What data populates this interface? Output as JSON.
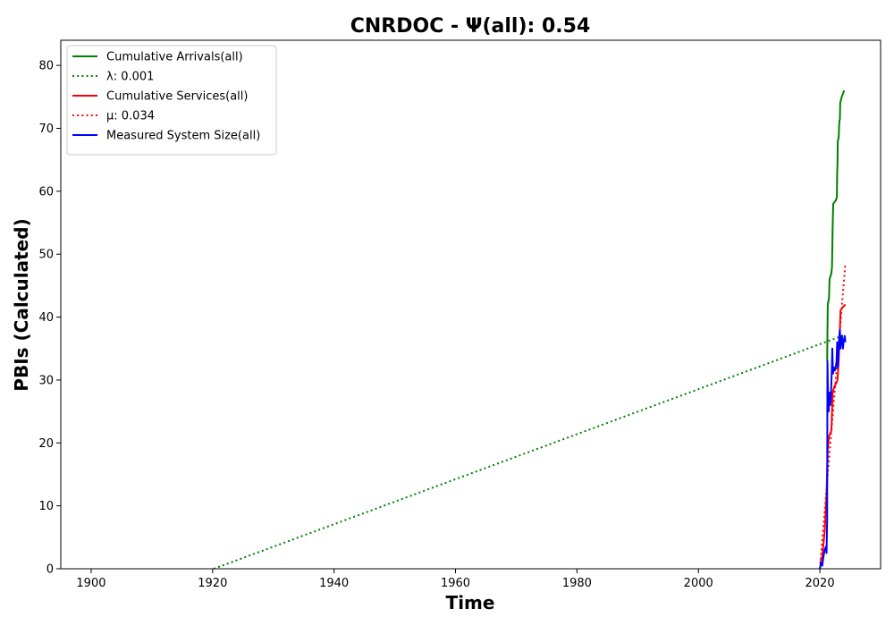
{
  "chart_data": {
    "type": "line",
    "title": "CNRDOC -  Ψ(all): 0.54",
    "xlabel": "Time",
    "ylabel": "PBIs (Calculated)",
    "xlim": [
      1895,
      2030
    ],
    "ylim": [
      0,
      84
    ],
    "xticks": [
      1900,
      1920,
      1940,
      1960,
      1980,
      2000,
      2020
    ],
    "yticks": [
      0,
      10,
      20,
      30,
      40,
      50,
      60,
      70,
      80
    ],
    "grid": false,
    "legend_position": "top-left",
    "series": [
      {
        "name": "Cumulative Arrivals(all)",
        "color": "#008000",
        "style": "solid",
        "points": [
          [
            2021.2,
            33
          ],
          [
            2021.3,
            42
          ],
          [
            2021.5,
            43
          ],
          [
            2021.6,
            46
          ],
          [
            2021.9,
            47
          ],
          [
            2022.0,
            48
          ],
          [
            2022.1,
            54
          ],
          [
            2022.2,
            58
          ],
          [
            2022.6,
            58.5
          ],
          [
            2022.8,
            59
          ],
          [
            2022.85,
            63
          ],
          [
            2022.9,
            64
          ],
          [
            2022.95,
            68
          ],
          [
            2023.1,
            68.5
          ],
          [
            2023.2,
            71
          ],
          [
            2023.3,
            71.5
          ],
          [
            2023.35,
            74
          ],
          [
            2023.6,
            75
          ],
          [
            2024.0,
            76
          ]
        ]
      },
      {
        "name": "λ: 0.001",
        "color": "#008000",
        "style": "dotted",
        "points": [
          [
            1920.2,
            0
          ],
          [
            2024.2,
            37.2
          ]
        ]
      },
      {
        "name": "Cumulative Services(all)",
        "color": "#ff0000",
        "style": "solid",
        "points": [
          [
            2020.1,
            1
          ],
          [
            2020.4,
            2
          ],
          [
            2020.8,
            6
          ],
          [
            2021.1,
            12
          ],
          [
            2021.3,
            19
          ],
          [
            2021.5,
            21
          ],
          [
            2021.7,
            21.5
          ],
          [
            2021.9,
            22
          ],
          [
            2022.1,
            28
          ],
          [
            2022.4,
            29
          ],
          [
            2022.7,
            29.5
          ],
          [
            2022.9,
            30
          ],
          [
            2023.1,
            33
          ],
          [
            2023.3,
            38
          ],
          [
            2023.4,
            41
          ],
          [
            2023.7,
            41.5
          ],
          [
            2024.2,
            42
          ]
        ]
      },
      {
        "name": "μ: 0.034",
        "color": "#ff0000",
        "style": "dotted",
        "points": [
          [
            2020.0,
            0
          ],
          [
            2024.2,
            48.5
          ]
        ]
      },
      {
        "name": "Measured System Size(all)",
        "color": "#0000ff",
        "style": "solid",
        "points": [
          [
            2020.0,
            0
          ],
          [
            2020.2,
            1
          ],
          [
            2020.4,
            0.5
          ],
          [
            2020.6,
            2
          ],
          [
            2020.8,
            3
          ],
          [
            2021.0,
            3.5
          ],
          [
            2021.1,
            2.5
          ],
          [
            2021.2,
            8
          ],
          [
            2021.25,
            33
          ],
          [
            2021.35,
            27
          ],
          [
            2021.45,
            25
          ],
          [
            2021.6,
            28
          ],
          [
            2021.7,
            26
          ],
          [
            2021.8,
            27
          ],
          [
            2021.95,
            31
          ],
          [
            2022.05,
            35
          ],
          [
            2022.15,
            31
          ],
          [
            2022.3,
            32
          ],
          [
            2022.45,
            31.5
          ],
          [
            2022.6,
            32
          ],
          [
            2022.75,
            33
          ],
          [
            2022.85,
            36
          ],
          [
            2022.95,
            32
          ],
          [
            2023.05,
            34
          ],
          [
            2023.2,
            37
          ],
          [
            2023.3,
            38
          ],
          [
            2023.4,
            35
          ],
          [
            2023.5,
            36
          ],
          [
            2023.6,
            37
          ],
          [
            2023.7,
            36.5
          ],
          [
            2023.8,
            35
          ],
          [
            2023.9,
            36
          ],
          [
            2024.1,
            37
          ],
          [
            2024.2,
            36
          ]
        ]
      }
    ]
  }
}
